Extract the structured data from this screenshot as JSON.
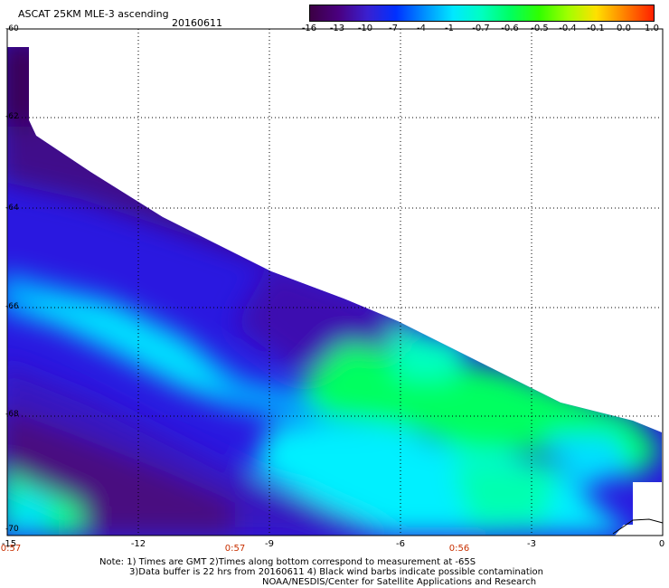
{
  "title": "ASCAT 25KM MLE-3 ascending",
  "date": "20160611",
  "colorbar": {
    "ticks": [
      "-16",
      "-13",
      "-10",
      "-7",
      "-4",
      "-1",
      "-0.7",
      "-0.6",
      "-0.5",
      "-0.4",
      "-0.1",
      "0.0",
      "1.0"
    ],
    "colors": [
      "#3c0044",
      "#4a0080",
      "#3a20d0",
      "#0030ff",
      "#0090ff",
      "#00e8ff",
      "#00ffc0",
      "#00ff60",
      "#30ff00",
      "#a0ff00",
      "#ffe000",
      "#ff8000",
      "#ff2000"
    ]
  },
  "axes": {
    "lat_labels": [
      "-60",
      "-62",
      "-64",
      "-66",
      "-68",
      "-70"
    ],
    "lon_labels": [
      "-15",
      "-12",
      "-9",
      "-6",
      "-3",
      "0"
    ],
    "time_labels": [
      "0:57",
      "0:57",
      "0:56"
    ]
  },
  "map_data": {
    "lat_range": [
      -70,
      -60
    ],
    "lon_range": [
      -15,
      0
    ],
    "colors": {
      "dark_purple": "#3a0055",
      "purple": "#4a10a0",
      "blue_violet": "#2a18e0",
      "blue": "#0a3cff",
      "sky": "#0090ff",
      "cyan": "#00f0ff",
      "teal": "#00ffb0",
      "green": "#00ff50"
    }
  },
  "notes": [
    "Note: 1) Times are GMT 2)Times along bottom correspond to measurement at -65S",
    "3)Data buffer is 22 hrs from 20160611 4) Black wind barbs indicate possible contamination",
    "NOAA/NESDIS/Center for Satellite Applications and Research"
  ]
}
